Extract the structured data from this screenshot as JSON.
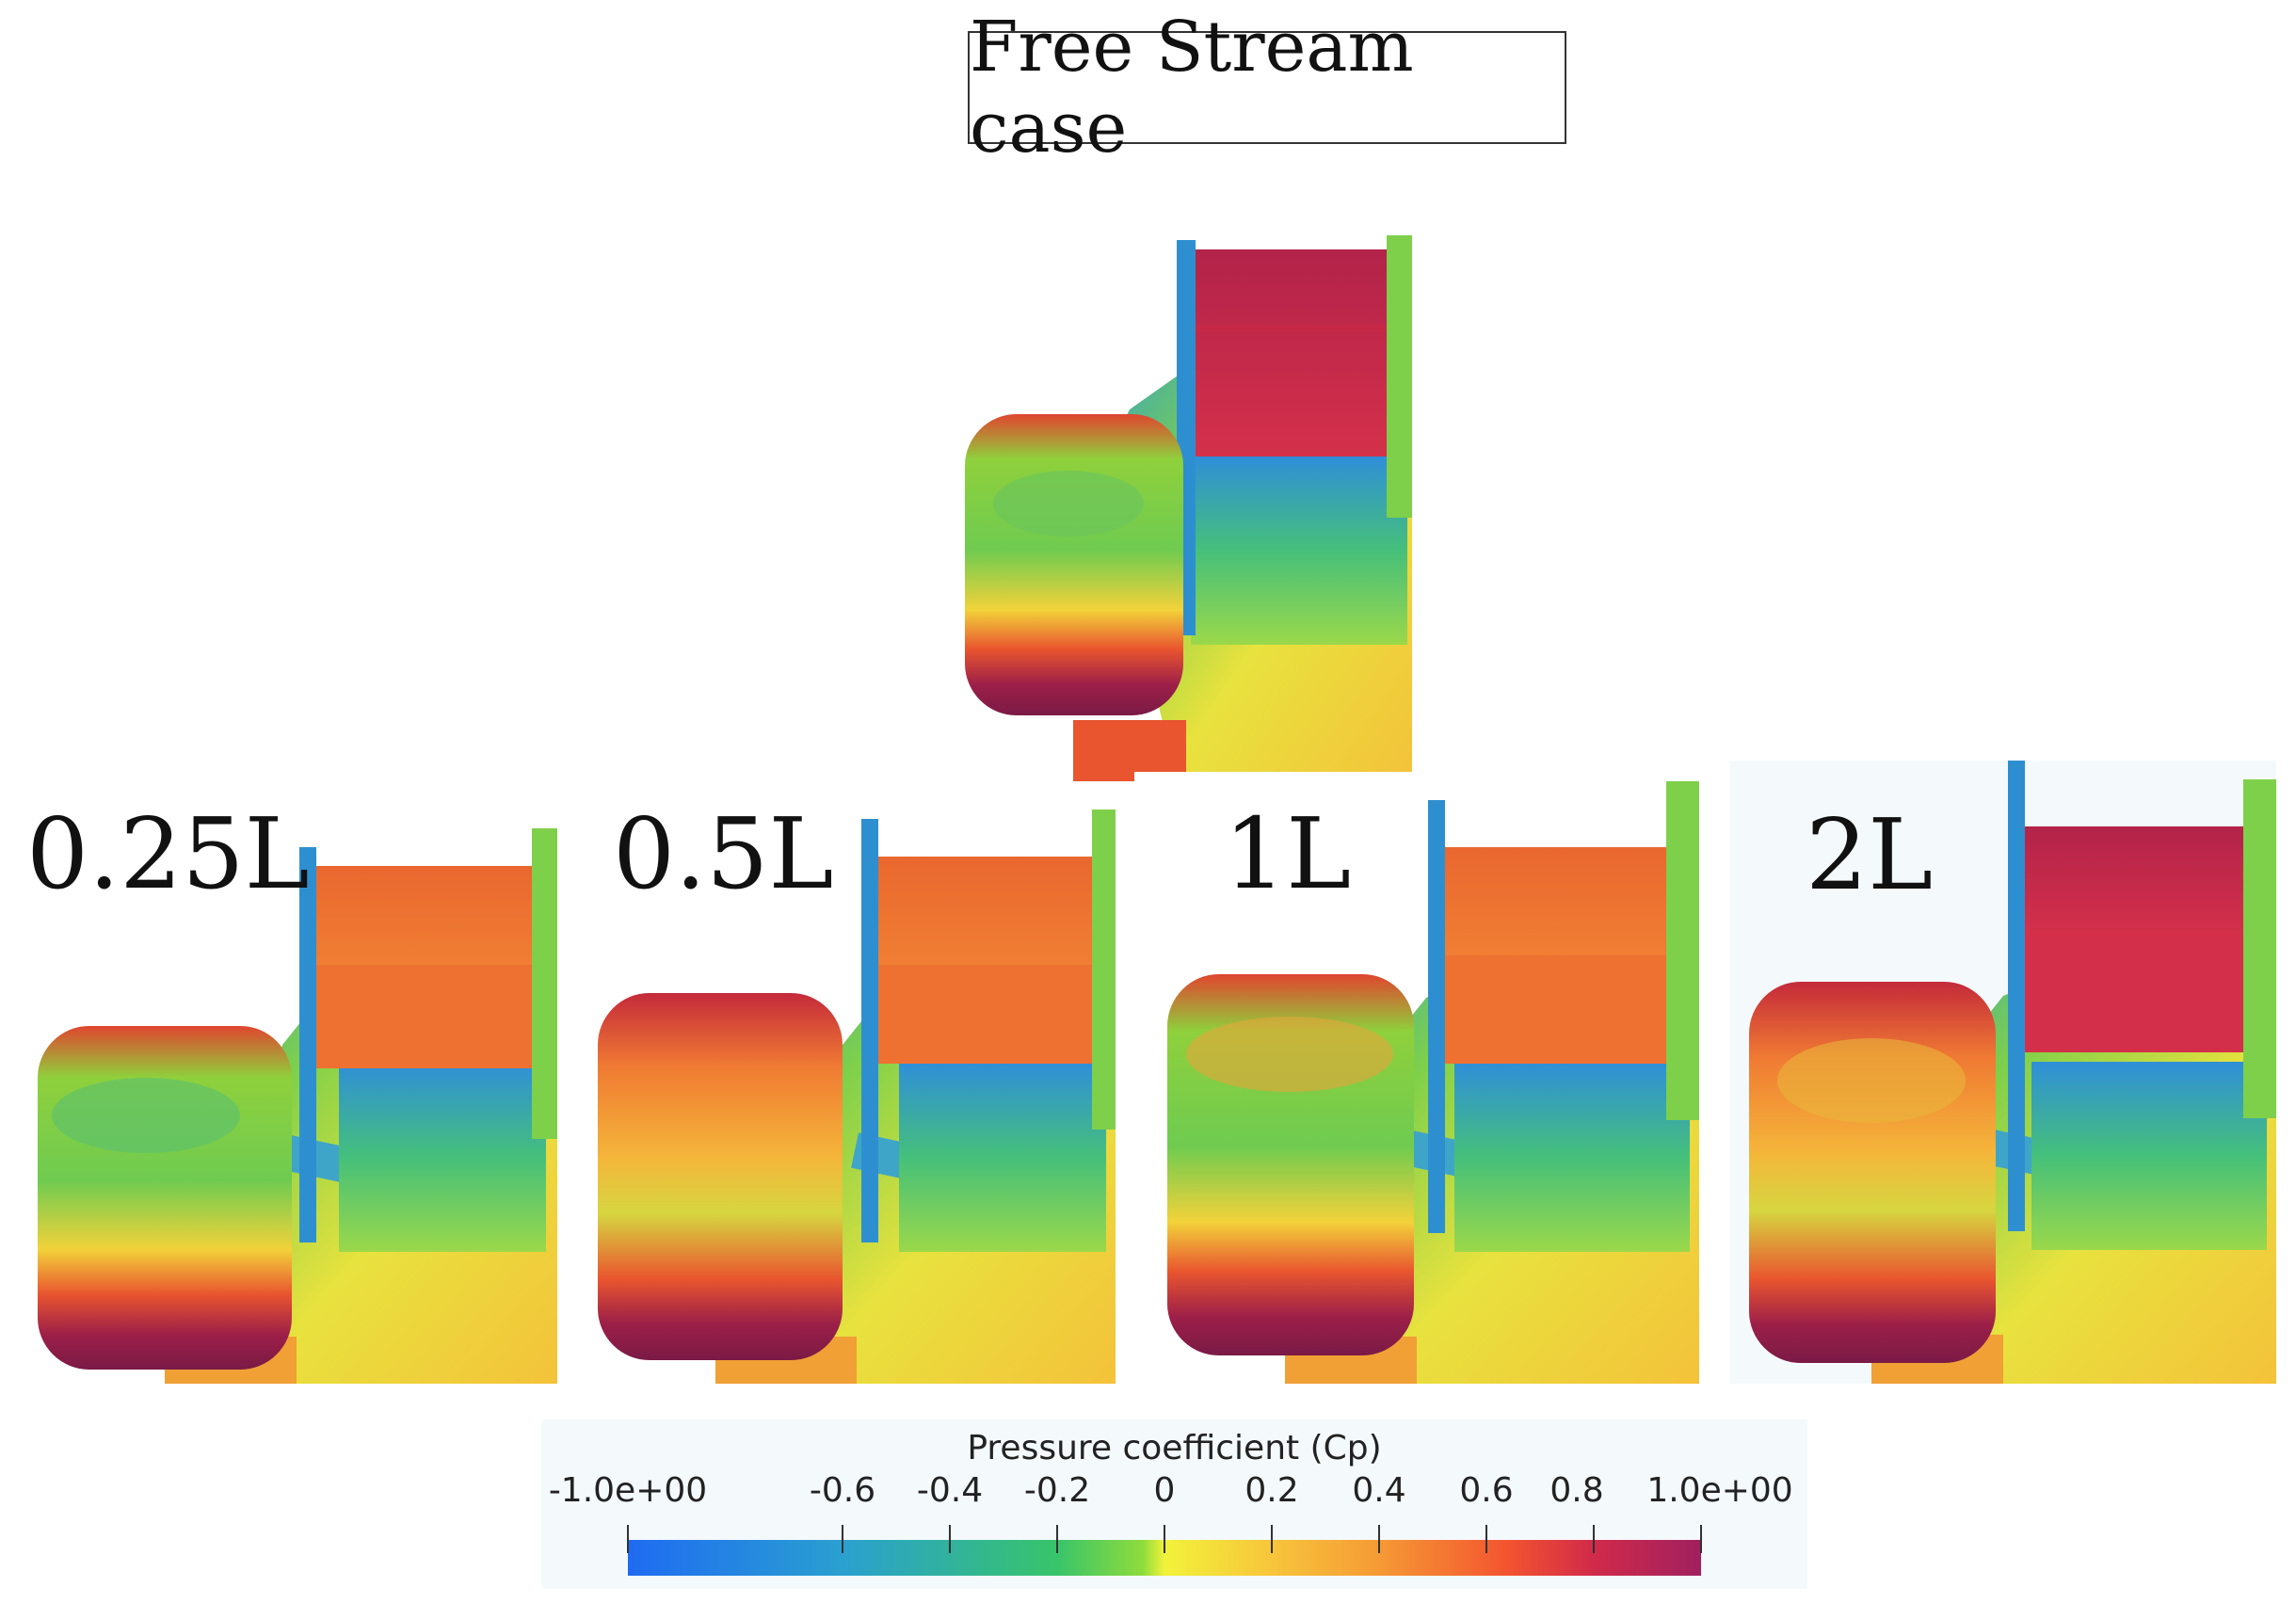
{
  "title": "Free Stream case",
  "cases": [
    {
      "label": "0.25L"
    },
    {
      "label": "0.5L"
    },
    {
      "label": "1L"
    },
    {
      "label": "2L"
    }
  ],
  "colorbar": {
    "title": "Pressure coefficient (Cp)",
    "range": [
      -1.0,
      1.0
    ],
    "ticks": [
      "-1.0e+00",
      "-0.6",
      "-0.4",
      "-0.2",
      "0",
      "0.2",
      "0.4",
      "0.6",
      "0.8",
      "1.0e+00"
    ],
    "tick_values": [
      -1.0,
      -0.6,
      -0.4,
      -0.2,
      0,
      0.2,
      0.4,
      0.6,
      0.8,
      1.0
    ],
    "colors": [
      "#1f6bf2",
      "#38c46a",
      "#f2f23a",
      "#f3542f",
      "#a0205e"
    ]
  }
}
